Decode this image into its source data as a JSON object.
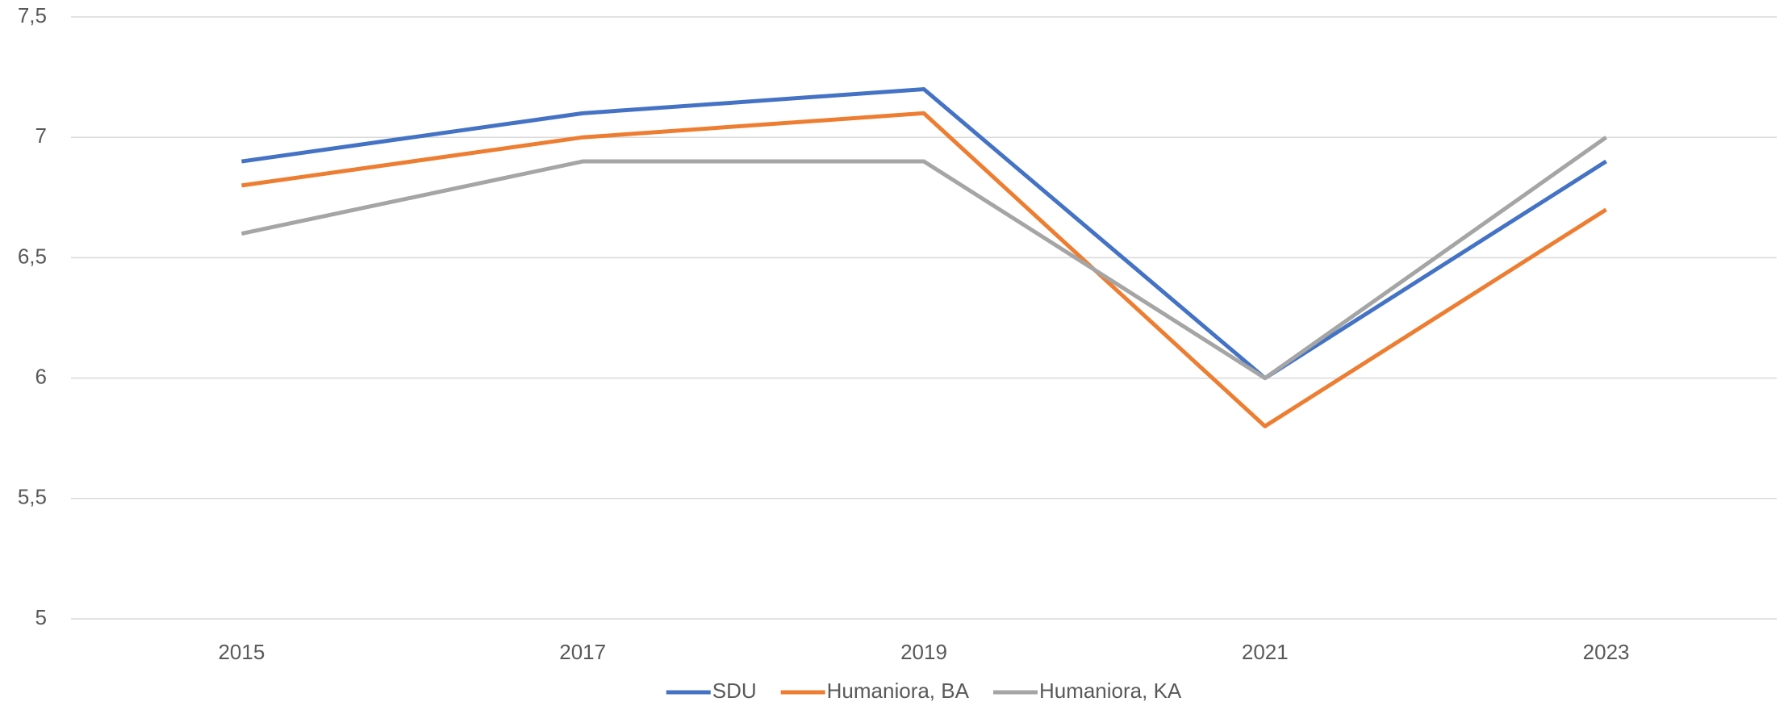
{
  "chart_data": {
    "type": "line",
    "categories": [
      "2015",
      "2017",
      "2019",
      "2021",
      "2023"
    ],
    "series": [
      {
        "name": "SDU",
        "color": "#4472c4",
        "values": [
          6.9,
          7.1,
          7.2,
          6.0,
          6.9
        ]
      },
      {
        "name": "Humaniora, BA",
        "color": "#ed7d31",
        "values": [
          6.8,
          7.0,
          7.1,
          5.8,
          6.7
        ]
      },
      {
        "name": "Humaniora, KA",
        "color": "#a5a5a5",
        "values": [
          6.6,
          6.9,
          6.9,
          6.0,
          7.0
        ]
      }
    ],
    "ylim": [
      5,
      7.5
    ],
    "yticks": [
      5,
      {
        "value": 5.5,
        "label": "5,5"
      },
      6,
      {
        "value": 6.5,
        "label": "6,5"
      },
      7,
      {
        "value": 7.5,
        "label": "7,5"
      }
    ],
    "grid": true,
    "legend": "bottom"
  }
}
